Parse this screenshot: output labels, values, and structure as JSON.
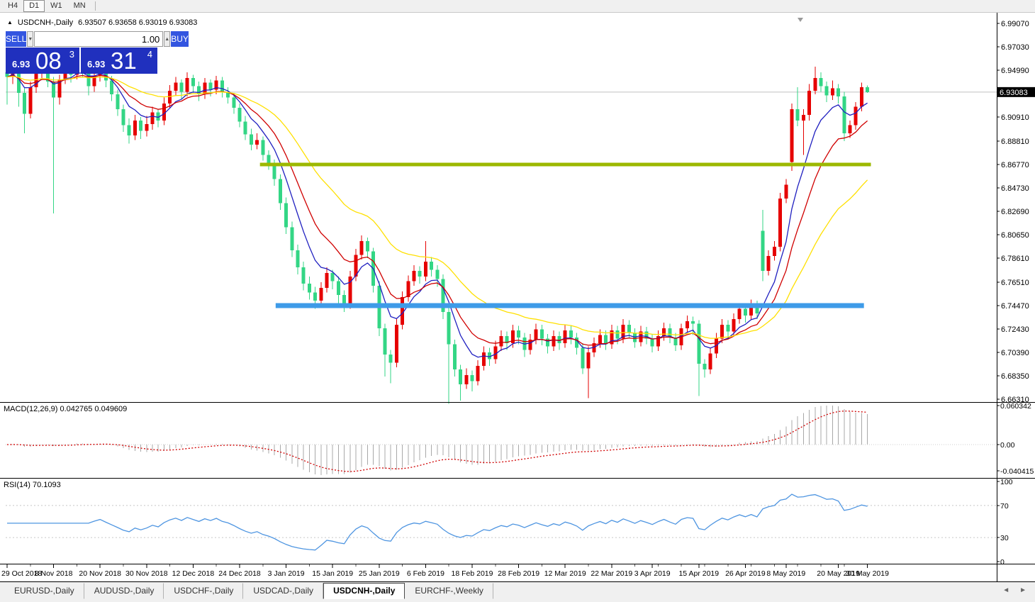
{
  "toolbar": {
    "buttons": [
      "H4",
      "D1",
      "W1",
      "MN"
    ],
    "active": "D1"
  },
  "chart_header": {
    "collapse_icon": "▲",
    "symbol": "USDCNH-,Daily",
    "ohlc": "6.93507 6.93658 6.93019 6.93083"
  },
  "trade_panel": {
    "sell_label": "SELL",
    "buy_label": "BUY",
    "volume": "1.00",
    "spinner_down": "▼",
    "spinner_up": "▲",
    "sell_price": {
      "small": "6.93",
      "big": "08",
      "sup": "3"
    },
    "buy_price": {
      "small": "6.93",
      "big": "31",
      "sup": "4"
    }
  },
  "chart_data": {
    "type": "candlestick",
    "title": "USDCNH-,Daily",
    "price_range": {
      "top": 6.9907,
      "bottom": 6.6631
    },
    "colors": {
      "up_candle": "#E60000",
      "down_candle": "#33D685",
      "ma_fast": "#2020C0",
      "ma_medium": "#D00000",
      "ma_slow": "#FFE000",
      "current_price_line": "#C0C0C0",
      "marker": "#999999"
    },
    "ma_lines": [
      {
        "name": "ma-fast",
        "color": "#2020C0",
        "period": 7
      },
      {
        "name": "ma-medium",
        "color": "#D00000",
        "period": 13
      },
      {
        "name": "ma-slow",
        "color": "#FFE000",
        "period": 30
      }
    ],
    "hlines": [
      {
        "name": "resistance-line",
        "price": 6.8677,
        "color": "#9CB800",
        "thickness": 5,
        "i1": 43.5,
        "i2": 148.6
      },
      {
        "name": "support-line",
        "price": 6.7447,
        "color": "#3E9BE8",
        "thickness": 7,
        "i1": 46.2,
        "i2": 147.4
      }
    ],
    "current_price": {
      "value": 6.93083,
      "label": "6.93083"
    },
    "price_axis_labels": [
      "6.99070",
      "6.97030",
      "6.94990",
      "6.90910",
      "6.88810",
      "6.86770",
      "6.84730",
      "6.82690",
      "6.80650",
      "6.78610",
      "6.76510",
      "6.74470",
      "6.72430",
      "6.70390",
      "6.68350",
      "6.66310"
    ],
    "date_labels": [
      {
        "i": 0,
        "t": "29 Oct 2018"
      },
      {
        "i": 8,
        "t": "8 Nov 2018"
      },
      {
        "i": 16,
        "t": "20 Nov 2018"
      },
      {
        "i": 24,
        "t": "30 Nov 2018"
      },
      {
        "i": 32,
        "t": "12 Dec 2018"
      },
      {
        "i": 40,
        "t": "24 Dec 2018"
      },
      {
        "i": 48,
        "t": "3 Jan 2019"
      },
      {
        "i": 56,
        "t": "15 Jan 2019"
      },
      {
        "i": 64,
        "t": "25 Jan 2019"
      },
      {
        "i": 72,
        "t": "6 Feb 2019"
      },
      {
        "i": 80,
        "t": "18 Feb 2019"
      },
      {
        "i": 88,
        "t": "28 Feb 2019"
      },
      {
        "i": 96,
        "t": "12 Mar 2019"
      },
      {
        "i": 104,
        "t": "22 Mar 2019"
      },
      {
        "i": 111,
        "t": "3 Apr 2019"
      },
      {
        "i": 119,
        "t": "15 Apr 2019"
      },
      {
        "i": 127,
        "t": "26 Apr 2019"
      },
      {
        "i": 134,
        "t": "8 May 2019"
      },
      {
        "i": 143,
        "t": "20 May 2019"
      },
      {
        "i": 148,
        "t": "30 May 2019"
      }
    ],
    "candles": [
      [
        6.948,
        6.96,
        6.92,
        6.944
      ],
      [
        6.944,
        6.958,
        6.938,
        6.953
      ],
      [
        6.953,
        6.956,
        6.918,
        6.93
      ],
      [
        6.93,
        6.934,
        6.895,
        6.912
      ],
      [
        6.912,
        6.94,
        6.908,
        6.935
      ],
      [
        6.935,
        6.952,
        6.93,
        6.948
      ],
      [
        6.948,
        6.962,
        6.943,
        6.956
      ],
      [
        6.956,
        6.96,
        6.935,
        6.94
      ],
      [
        6.94,
        6.944,
        6.825,
        6.926
      ],
      [
        6.926,
        6.946,
        6.92,
        6.942
      ],
      [
        6.942,
        6.958,
        6.938,
        6.953
      ],
      [
        6.953,
        6.957,
        6.939,
        6.946
      ],
      [
        6.946,
        6.964,
        6.942,
        6.958
      ],
      [
        6.958,
        6.962,
        6.944,
        6.95
      ],
      [
        6.95,
        6.954,
        6.928,
        6.936
      ],
      [
        6.936,
        6.95,
        6.931,
        6.945
      ],
      [
        6.945,
        6.958,
        6.94,
        6.953
      ],
      [
        6.953,
        6.956,
        6.935,
        6.941
      ],
      [
        6.941,
        6.945,
        6.923,
        6.929
      ],
      [
        6.929,
        6.933,
        6.91,
        6.916
      ],
      [
        6.916,
        6.92,
        6.896,
        6.902
      ],
      [
        6.902,
        6.908,
        6.886,
        6.893
      ],
      [
        6.893,
        6.911,
        6.889,
        6.906
      ],
      [
        6.906,
        6.909,
        6.89,
        6.897
      ],
      [
        6.897,
        6.91,
        6.892,
        6.903
      ],
      [
        6.903,
        6.918,
        6.898,
        6.913
      ],
      [
        6.913,
        6.916,
        6.9,
        6.906
      ],
      [
        6.906,
        6.926,
        6.902,
        6.921
      ],
      [
        6.921,
        6.937,
        6.917,
        6.932
      ],
      [
        6.932,
        6.944,
        6.928,
        6.939
      ],
      [
        6.939,
        6.942,
        6.925,
        6.931
      ],
      [
        6.931,
        6.948,
        6.927,
        6.943
      ],
      [
        6.943,
        6.946,
        6.93,
        6.936
      ],
      [
        6.936,
        6.94,
        6.923,
        6.929
      ],
      [
        6.929,
        6.943,
        6.925,
        6.939
      ],
      [
        6.939,
        6.942,
        6.927,
        6.933
      ],
      [
        6.933,
        6.945,
        6.929,
        6.941
      ],
      [
        6.941,
        6.944,
        6.926,
        6.931
      ],
      [
        6.931,
        6.935,
        6.921,
        6.926
      ],
      [
        6.926,
        6.93,
        6.912,
        6.917
      ],
      [
        6.917,
        6.921,
        6.9,
        6.905
      ],
      [
        6.905,
        6.91,
        6.889,
        6.894
      ],
      [
        6.894,
        6.899,
        6.88,
        6.885
      ],
      [
        6.885,
        6.895,
        6.881,
        6.889
      ],
      [
        6.889,
        6.892,
        6.871,
        6.876
      ],
      [
        6.876,
        6.88,
        6.863,
        6.868
      ],
      [
        6.868,
        6.872,
        6.849,
        6.855
      ],
      [
        6.855,
        6.859,
        6.828,
        6.834
      ],
      [
        6.834,
        6.839,
        6.807,
        6.813
      ],
      [
        6.813,
        6.818,
        6.787,
        6.793
      ],
      [
        6.793,
        6.798,
        6.772,
        6.778
      ],
      [
        6.778,
        6.783,
        6.758,
        6.764
      ],
      [
        6.764,
        6.77,
        6.75,
        6.756
      ],
      [
        6.756,
        6.761,
        6.742,
        6.749
      ],
      [
        6.749,
        6.765,
        6.745,
        6.76
      ],
      [
        6.76,
        6.778,
        6.756,
        6.773
      ],
      [
        6.773,
        6.776,
        6.759,
        6.766
      ],
      [
        6.766,
        6.77,
        6.747,
        6.754
      ],
      [
        6.754,
        6.758,
        6.739,
        6.746
      ],
      [
        6.746,
        6.775,
        6.742,
        6.77
      ],
      [
        6.77,
        6.794,
        6.766,
        6.789
      ],
      [
        6.789,
        6.806,
        6.785,
        6.801
      ],
      [
        6.801,
        6.804,
        6.786,
        6.792
      ],
      [
        6.792,
        6.795,
        6.756,
        6.762
      ],
      [
        6.762,
        6.766,
        6.718,
        6.725
      ],
      [
        6.725,
        6.729,
        6.683,
        6.702
      ],
      [
        6.702,
        6.706,
        6.677,
        6.695
      ],
      [
        6.695,
        6.733,
        6.691,
        6.728
      ],
      [
        6.728,
        6.757,
        6.724,
        6.752
      ],
      [
        6.752,
        6.771,
        6.748,
        6.766
      ],
      [
        6.766,
        6.78,
        6.762,
        6.775
      ],
      [
        6.775,
        6.779,
        6.764,
        6.77
      ],
      [
        6.77,
        6.801,
        6.766,
        6.783
      ],
      [
        6.783,
        6.787,
        6.77,
        6.776
      ],
      [
        6.776,
        6.78,
        6.761,
        6.768
      ],
      [
        6.768,
        6.772,
        6.733,
        6.739
      ],
      [
        6.739,
        6.743,
        6.659,
        6.711
      ],
      [
        6.711,
        6.715,
        6.683,
        6.689
      ],
      [
        6.689,
        6.693,
        6.662,
        6.676
      ],
      [
        6.676,
        6.69,
        6.672,
        6.684
      ],
      [
        6.684,
        6.688,
        6.67,
        6.679
      ],
      [
        6.679,
        6.697,
        6.675,
        6.692
      ],
      [
        6.692,
        6.709,
        6.688,
        6.704
      ],
      [
        6.704,
        6.708,
        6.692,
        6.698
      ],
      [
        6.698,
        6.714,
        6.694,
        6.709
      ],
      [
        6.709,
        6.723,
        6.705,
        6.718
      ],
      [
        6.718,
        6.722,
        6.706,
        6.712
      ],
      [
        6.712,
        6.728,
        6.708,
        6.723
      ],
      [
        6.723,
        6.727,
        6.711,
        6.717
      ],
      [
        6.717,
        6.721,
        6.7,
        6.706
      ],
      [
        6.706,
        6.72,
        6.702,
        6.715
      ],
      [
        6.715,
        6.729,
        6.711,
        6.724
      ],
      [
        6.724,
        6.728,
        6.71,
        6.716
      ],
      [
        6.716,
        6.72,
        6.703,
        6.709
      ],
      [
        6.709,
        6.723,
        6.705,
        6.718
      ],
      [
        6.718,
        6.722,
        6.706,
        6.712
      ],
      [
        6.712,
        6.728,
        6.708,
        6.723
      ],
      [
        6.723,
        6.727,
        6.711,
        6.717
      ],
      [
        6.717,
        6.721,
        6.702,
        6.708
      ],
      [
        6.708,
        6.712,
        6.685,
        6.69
      ],
      [
        6.69,
        6.709,
        6.664,
        6.704
      ],
      [
        6.704,
        6.717,
        6.7,
        6.712
      ],
      [
        6.712,
        6.724,
        6.708,
        6.719
      ],
      [
        6.719,
        6.723,
        6.706,
        6.711
      ],
      [
        6.711,
        6.728,
        6.707,
        6.723
      ],
      [
        6.723,
        6.727,
        6.711,
        6.716
      ],
      [
        6.716,
        6.733,
        6.712,
        6.728
      ],
      [
        6.728,
        6.732,
        6.716,
        6.721
      ],
      [
        6.721,
        6.725,
        6.708,
        6.713
      ],
      [
        6.713,
        6.727,
        6.709,
        6.722
      ],
      [
        6.722,
        6.726,
        6.711,
        6.716
      ],
      [
        6.716,
        6.72,
        6.704,
        6.709
      ],
      [
        6.709,
        6.723,
        6.705,
        6.718
      ],
      [
        6.718,
        6.73,
        6.714,
        6.725
      ],
      [
        6.725,
        6.729,
        6.712,
        6.717
      ],
      [
        6.717,
        6.721,
        6.705,
        6.71
      ],
      [
        6.71,
        6.729,
        6.706,
        6.725
      ],
      [
        6.725,
        6.736,
        6.721,
        6.731
      ],
      [
        6.731,
        6.735,
        6.719,
        6.729
      ],
      [
        6.729,
        6.732,
        6.666,
        6.694
      ],
      [
        6.694,
        6.698,
        6.682,
        6.689
      ],
      [
        6.689,
        6.708,
        6.685,
        6.703
      ],
      [
        6.703,
        6.721,
        6.699,
        6.716
      ],
      [
        6.716,
        6.733,
        6.712,
        6.728
      ],
      [
        6.728,
        6.732,
        6.716,
        6.722
      ],
      [
        6.722,
        6.738,
        6.718,
        6.733
      ],
      [
        6.733,
        6.747,
        6.729,
        6.742
      ],
      [
        6.742,
        6.746,
        6.73,
        6.736
      ],
      [
        6.736,
        6.75,
        6.732,
        6.745
      ],
      [
        6.745,
        6.749,
        6.733,
        6.738
      ],
      [
        6.81,
        6.828,
        6.766,
        6.775
      ],
      [
        6.775,
        6.793,
        6.771,
        6.788
      ],
      [
        6.788,
        6.801,
        6.784,
        6.796
      ],
      [
        6.796,
        6.843,
        6.792,
        6.838
      ],
      [
        6.838,
        6.855,
        6.834,
        6.85
      ],
      [
        6.87,
        6.921,
        6.862,
        6.916
      ],
      [
        6.916,
        6.935,
        6.901,
        6.906
      ],
      [
        6.906,
        6.916,
        6.876,
        6.911
      ],
      [
        6.911,
        6.938,
        6.906,
        6.932
      ],
      [
        6.932,
        6.953,
        6.929,
        6.943
      ],
      [
        6.943,
        6.948,
        6.931,
        6.936
      ],
      [
        6.936,
        6.94,
        6.922,
        6.928
      ],
      [
        6.928,
        6.941,
        6.924,
        6.934
      ],
      [
        6.934,
        6.938,
        6.921,
        6.927
      ],
      [
        6.927,
        6.931,
        6.888,
        6.895
      ],
      [
        6.895,
        6.906,
        6.891,
        6.902
      ],
      [
        6.902,
        6.922,
        6.898,
        6.918
      ],
      [
        6.918,
        6.939,
        6.914,
        6.935
      ],
      [
        6.9351,
        6.9366,
        6.9302,
        6.9308
      ]
    ],
    "indicators": [
      {
        "name": "MACD",
        "label": "MACD(12,26,9) 0.042765 0.049609",
        "params": [
          12,
          26,
          9
        ],
        "main_value": 0.042765,
        "signal_value": 0.049609,
        "axis_labels": [
          {
            "t": "0.060342",
            "v": 0.060342
          },
          {
            "t": "0.00",
            "v": 0
          },
          {
            "t": "-0.040415",
            "v": -0.040415
          }
        ],
        "hist_color": "#A8A8A8",
        "signal_color": "#D00000"
      },
      {
        "name": "RSI",
        "label": "RSI(14) 70.1093",
        "params": [
          14
        ],
        "value": 70.1093,
        "axis_labels": [
          {
            "t": "100",
            "v": 100
          },
          {
            "t": "70",
            "v": 70
          },
          {
            "t": "30",
            "v": 30
          },
          {
            "t": "0",
            "v": 0
          }
        ],
        "levels": [
          70,
          30
        ],
        "line_color": "#4E95E1",
        "level_color": "#C6C6C6"
      }
    ]
  },
  "tabs": {
    "items": [
      {
        "label": "EURUSD-,Daily",
        "active": false
      },
      {
        "label": "AUDUSD-,Daily",
        "active": false
      },
      {
        "label": "USDCHF-,Daily",
        "active": false
      },
      {
        "label": "USDCAD-,Daily",
        "active": false
      },
      {
        "label": "USDCNH-,Daily",
        "active": true
      },
      {
        "label": "EURCHF-,Weekly",
        "active": false
      }
    ],
    "scroll_left": "◄",
    "scroll_right": "►"
  }
}
